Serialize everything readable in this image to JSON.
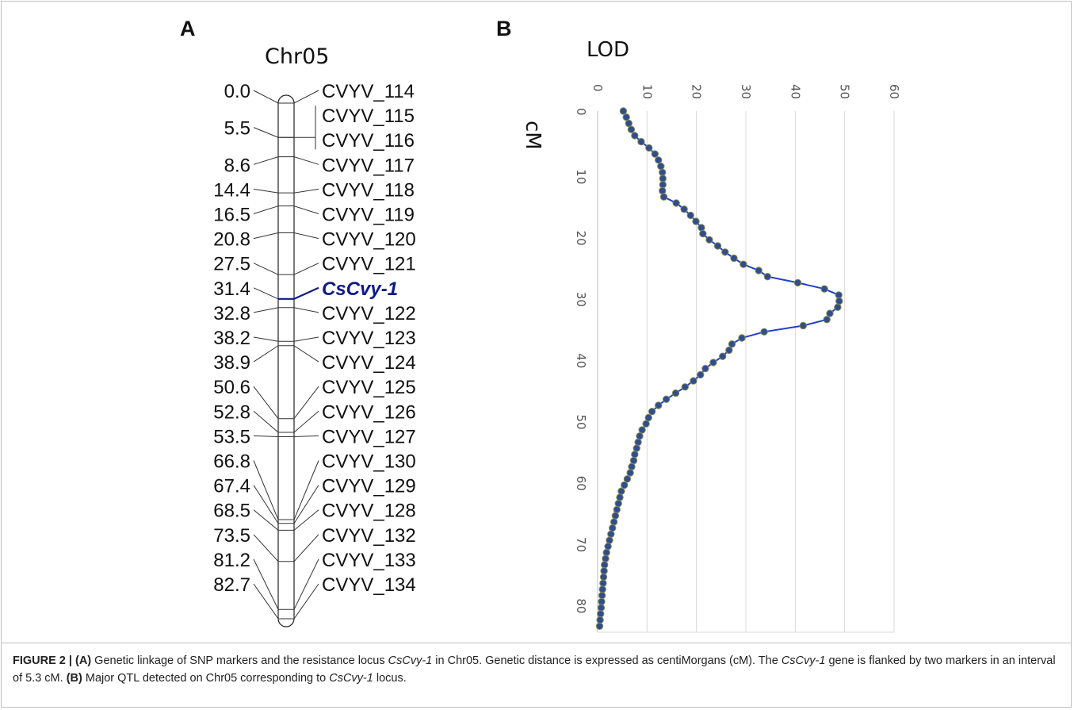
{
  "panel_a": {
    "letter": "A",
    "title": "Chr05",
    "markers": [
      {
        "pos": "0.0",
        "pos_value": 0.0,
        "name": "CVYV_114"
      },
      {
        "pos": "5.5",
        "pos_value": 5.5,
        "name": "CVYV_115"
      },
      {
        "pos": "",
        "pos_value": 5.5,
        "name": "CVYV_116"
      },
      {
        "pos": "8.6",
        "pos_value": 8.6,
        "name": "CVYV_117"
      },
      {
        "pos": "14.4",
        "pos_value": 14.4,
        "name": "CVYV_118"
      },
      {
        "pos": "16.5",
        "pos_value": 16.5,
        "name": "CVYV_119"
      },
      {
        "pos": "20.8",
        "pos_value": 20.8,
        "name": "CVYV_120"
      },
      {
        "pos": "27.5",
        "pos_value": 27.5,
        "name": "CVYV_121"
      },
      {
        "pos": "31.4",
        "pos_value": 31.4,
        "name": "CsCvy-1",
        "locus": true
      },
      {
        "pos": "32.8",
        "pos_value": 32.8,
        "name": "CVYV_122"
      },
      {
        "pos": "38.2",
        "pos_value": 38.2,
        "name": "CVYV_123"
      },
      {
        "pos": "38.9",
        "pos_value": 38.9,
        "name": "CVYV_124"
      },
      {
        "pos": "50.6",
        "pos_value": 50.6,
        "name": "CVYV_125"
      },
      {
        "pos": "52.8",
        "pos_value": 52.8,
        "name": "CVYV_126"
      },
      {
        "pos": "53.5",
        "pos_value": 53.5,
        "name": "CVYV_127"
      },
      {
        "pos": "66.8",
        "pos_value": 66.8,
        "name": "CVYV_130"
      },
      {
        "pos": "67.4",
        "pos_value": 67.4,
        "name": "CVYV_129"
      },
      {
        "pos": "68.5",
        "pos_value": 68.5,
        "name": "CVYV_128"
      },
      {
        "pos": "73.5",
        "pos_value": 73.5,
        "name": "CVYV_132"
      },
      {
        "pos": "81.2",
        "pos_value": 81.2,
        "name": "CVYV_133"
      },
      {
        "pos": "82.7",
        "pos_value": 82.7,
        "name": "CVYV_134"
      }
    ],
    "locus_color": "#0d1a87"
  },
  "chart_data": {
    "type": "line",
    "letter": "B",
    "title": "LOD",
    "ylabel": "cM",
    "orientation": "rotated-90-clockwise",
    "lod_ticks": [
      "0",
      "10",
      "20",
      "30",
      "40",
      "50",
      "60"
    ],
    "cm_ticks": [
      "0",
      "10",
      "20",
      "30",
      "40",
      "50",
      "60",
      "70",
      "80"
    ],
    "lod_range": [
      0,
      60
    ],
    "cm_range": [
      0,
      85
    ],
    "grid": true,
    "line_color": "#1f3fcf",
    "marker_color": "#2e4e8c",
    "series": [
      {
        "cm": [
          0,
          1,
          2,
          3,
          4,
          5,
          6,
          7,
          8,
          9,
          10,
          11,
          12,
          13,
          14,
          15,
          16,
          17,
          18,
          19,
          20,
          21,
          22,
          23,
          24,
          25,
          26,
          27,
          28,
          29,
          30,
          31,
          32,
          33,
          34,
          35,
          36,
          37,
          38,
          39,
          40,
          41,
          42,
          43,
          44,
          45,
          46,
          47,
          48,
          49,
          50,
          51,
          52,
          53,
          54,
          55,
          56,
          57,
          58,
          59,
          60,
          61,
          62,
          63,
          64,
          65,
          66,
          67,
          68,
          69,
          70,
          71,
          72,
          73,
          74,
          75,
          76,
          77,
          78,
          79,
          80,
          81,
          82,
          83,
          84
        ],
        "lod": [
          5.2,
          5.8,
          6.3,
          6.8,
          7.5,
          8.8,
          10.4,
          11.6,
          12.3,
          12.8,
          13.1,
          13.2,
          13.2,
          13.1,
          13.4,
          15.9,
          17.5,
          18.8,
          19.9,
          21.0,
          21.3,
          22.6,
          24.3,
          25.8,
          27.6,
          29.5,
          32.6,
          34.4,
          40.5,
          45.9,
          48.8,
          48.9,
          48.6,
          47.0,
          46.4,
          41.6,
          33.7,
          29.2,
          27.2,
          26.6,
          25.3,
          23.4,
          21.8,
          20.8,
          19.4,
          17.7,
          15.8,
          13.9,
          12.3,
          11.0,
          10.3,
          9.8,
          9.0,
          8.5,
          8.2,
          7.9,
          7.5,
          7.3,
          6.9,
          6.6,
          6.0,
          5.4,
          4.8,
          4.5,
          4.2,
          3.9,
          3.6,
          3.3,
          3.0,
          2.7,
          2.4,
          2.1,
          1.8,
          1.6,
          1.4,
          1.3,
          1.2,
          1.1,
          1.0,
          0.9,
          0.8,
          0.7,
          0.6,
          0.5,
          0.4
        ]
      }
    ]
  },
  "caption": {
    "label": "FIGURE 2 |",
    "a_tag": "(A)",
    "a_text_1": " Genetic linkage of SNP markers and the resistance locus ",
    "a_locus_1": "CsCvy-1",
    "a_text_2": " in Chr05. Genetic distance is expressed as centiMorgans (cM). The ",
    "a_locus_2": "CsCvy-1",
    "a_text_3": " gene is flanked by two markers in an interval of 5.3 cM. ",
    "b_tag": "(B)",
    "b_text_1": " Major QTL detected on Chr05 corresponding to ",
    "b_locus": "CsCvy-1",
    "b_text_2": " locus."
  }
}
